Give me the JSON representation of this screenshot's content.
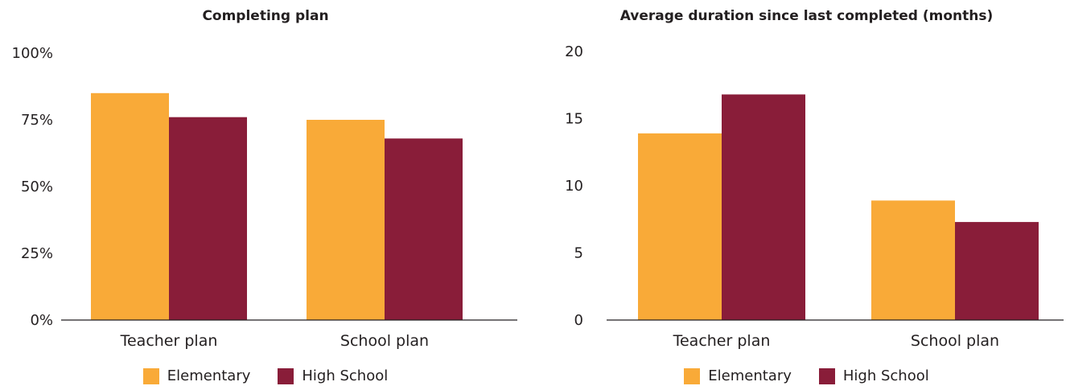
{
  "colors": {
    "elementary": "#f9aa38",
    "high_school": "#891d39",
    "axis": "#231f20"
  },
  "chart_data": [
    {
      "type": "bar",
      "title": "Completing plan",
      "categories": [
        "Teacher plan",
        "School plan"
      ],
      "series": [
        {
          "name": "Elementary",
          "values": [
            85,
            75
          ]
        },
        {
          "name": "High School",
          "values": [
            76,
            68
          ]
        }
      ],
      "ylim": [
        0,
        100
      ],
      "yticks": [
        0,
        25,
        50,
        75,
        100
      ],
      "ytick_labels": [
        "0%",
        "25%",
        "50%",
        "75%",
        "100%"
      ],
      "xlabel": "",
      "ylabel": "",
      "grid": false,
      "legend_position": "bottom"
    },
    {
      "type": "bar",
      "title": "Average duration since last completed (months)",
      "categories": [
        "Teacher plan",
        "School plan"
      ],
      "series": [
        {
          "name": "Elementary",
          "values": [
            13.9,
            8.9
          ]
        },
        {
          "name": "High School",
          "values": [
            16.8,
            7.3
          ]
        }
      ],
      "ylim": [
        0,
        20
      ],
      "yticks": [
        0,
        5,
        10,
        15,
        20
      ],
      "ytick_labels": [
        "0",
        "5",
        "10",
        "15",
        "20"
      ],
      "xlabel": "",
      "ylabel": "",
      "grid": false,
      "legend_position": "bottom"
    }
  ]
}
